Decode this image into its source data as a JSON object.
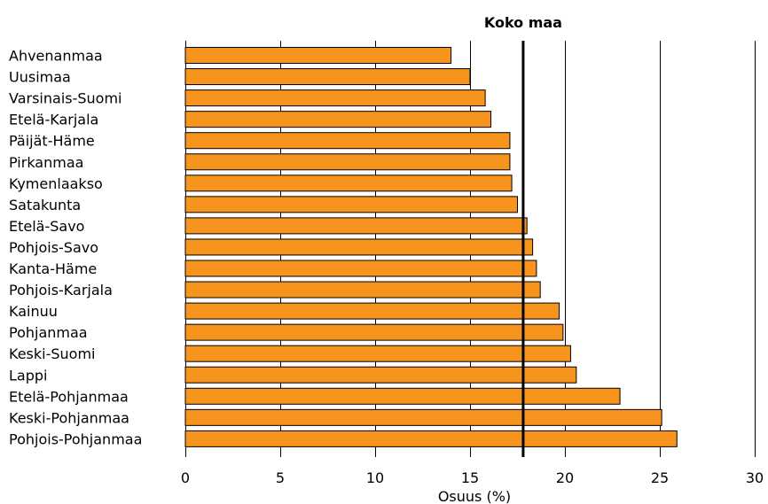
{
  "chart_data": {
    "type": "bar",
    "orientation": "horizontal",
    "categories": [
      "Ahvenanmaa",
      "Uusimaa",
      "Varsinais-Suomi",
      "Etelä-Karjala",
      "Päijät-Häme",
      "Pirkanmaa",
      "Kymenlaakso",
      "Satakunta",
      "Etelä-Savo",
      "Pohjois-Savo",
      "Kanta-Häme",
      "Pohjois-Karjala",
      "Kainuu",
      "Pohjanmaa",
      "Keski-Suomi",
      "Lappi",
      "Etelä-Pohjanmaa",
      "Keski-Pohjanmaa",
      "Pohjois-Pohjanmaa"
    ],
    "values": [
      14.0,
      15.0,
      15.8,
      16.1,
      17.1,
      17.1,
      17.2,
      17.5,
      18.0,
      18.3,
      18.5,
      18.7,
      19.7,
      19.9,
      20.3,
      20.6,
      22.9,
      25.1,
      25.9
    ],
    "xlabel": "Osuus (%)",
    "xlim": [
      0,
      30
    ],
    "xticks": [
      0,
      5,
      10,
      15,
      20,
      25,
      30
    ],
    "grid": "vertical",
    "reference_line": {
      "label": "Koko maa",
      "value": 17.8
    },
    "colors": {
      "bar": "#F7941D",
      "line": "#000000"
    }
  }
}
